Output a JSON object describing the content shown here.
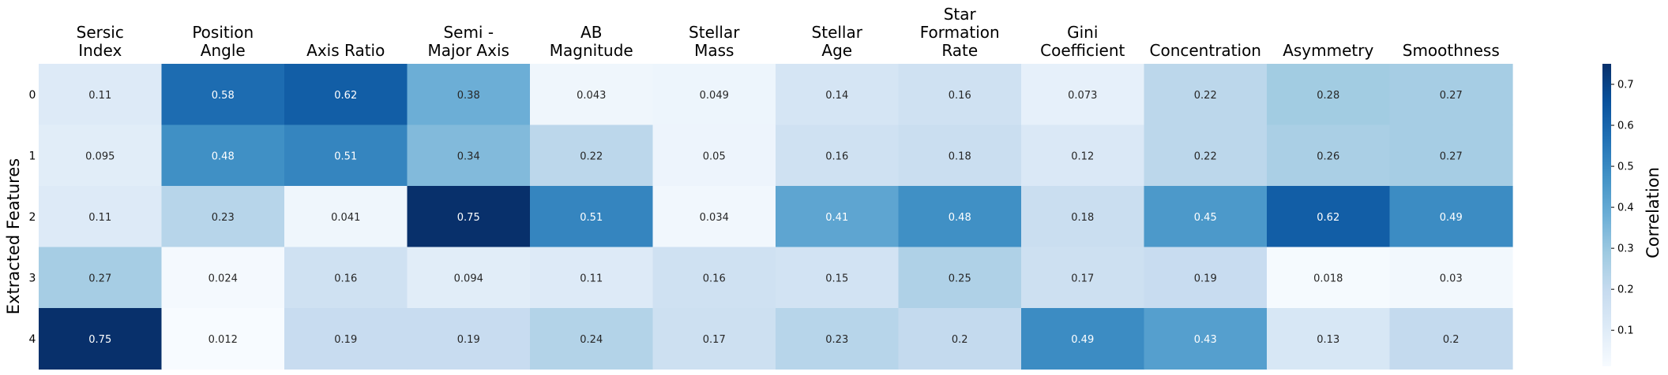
{
  "chart_data": {
    "type": "heatmap",
    "title": "",
    "xlabel": "",
    "ylabel": "Extracted Features",
    "columns": [
      [
        "Sersic",
        "Index"
      ],
      [
        "Position",
        "Angle"
      ],
      [
        "Axis Ratio"
      ],
      [
        "Semi -",
        "Major Axis"
      ],
      [
        "AB",
        "Magnitude"
      ],
      [
        "Stellar",
        "Mass"
      ],
      [
        "Stellar",
        "Age"
      ],
      [
        "Star",
        "Formation",
        "Rate"
      ],
      [
        "Gini",
        "Coefficient"
      ],
      [
        "Concentration"
      ],
      [
        "Asymmetry"
      ],
      [
        "Smoothness"
      ]
    ],
    "rows": [
      "0",
      "1",
      "2",
      "3",
      "4"
    ],
    "values": [
      [
        0.11,
        0.58,
        0.62,
        0.38,
        0.043,
        0.049,
        0.14,
        0.16,
        0.073,
        0.22,
        0.28,
        0.27
      ],
      [
        0.095,
        0.48,
        0.51,
        0.34,
        0.22,
        0.05,
        0.16,
        0.18,
        0.12,
        0.22,
        0.26,
        0.27
      ],
      [
        0.11,
        0.23,
        0.041,
        0.75,
        0.51,
        0.034,
        0.41,
        0.48,
        0.18,
        0.45,
        0.62,
        0.49
      ],
      [
        0.27,
        0.024,
        0.16,
        0.094,
        0.11,
        0.16,
        0.15,
        0.25,
        0.17,
        0.19,
        0.018,
        0.03
      ],
      [
        0.75,
        0.012,
        0.19,
        0.19,
        0.24,
        0.17,
        0.23,
        0.2,
        0.49,
        0.43,
        0.13,
        0.2
      ]
    ],
    "colormap": "Blues",
    "vmin": 0.012,
    "vmax": 0.75,
    "colorbar": {
      "label": "Correlation",
      "ticks": [
        0.1,
        0.2,
        0.3,
        0.4,
        0.5,
        0.6,
        0.7
      ],
      "placement": "right"
    }
  }
}
